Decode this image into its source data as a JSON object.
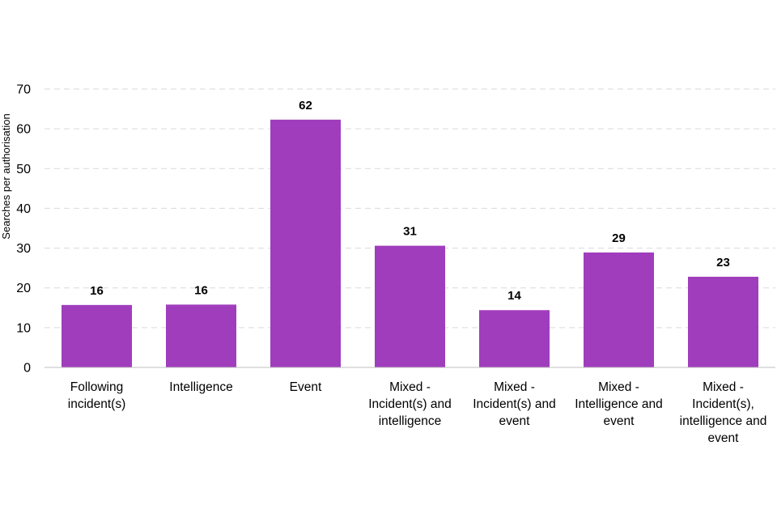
{
  "chart_data": {
    "type": "bar",
    "title": "",
    "xlabel": "",
    "ylabel": "Searches per authorisation",
    "ylim": [
      0,
      70
    ],
    "yticks": [
      0,
      10,
      20,
      30,
      40,
      50,
      60,
      70
    ],
    "grid": true,
    "legend": "none",
    "bar_color": "#a03dbd",
    "categories": [
      [
        "Following",
        "incident(s)"
      ],
      [
        "Intelligence"
      ],
      [
        "Event"
      ],
      [
        "Mixed -",
        "Incident(s) and",
        "intelligence"
      ],
      [
        "Mixed -",
        "Incident(s) and",
        "event"
      ],
      [
        "Mixed -",
        "Intelligence and",
        "event"
      ],
      [
        "Mixed -",
        "Incident(s),",
        "intelligence and",
        "event"
      ]
    ],
    "values": [
      15.7,
      15.8,
      62.3,
      30.6,
      14.4,
      28.9,
      22.8
    ],
    "data_labels": [
      "16",
      "16",
      "62",
      "31",
      "14",
      "29",
      "23"
    ]
  }
}
